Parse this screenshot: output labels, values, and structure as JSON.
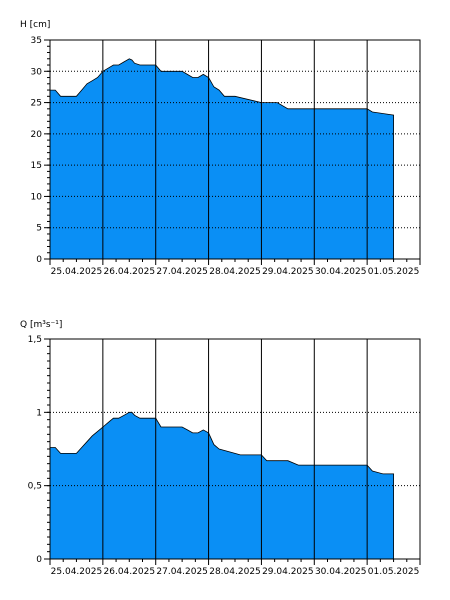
{
  "chart_data": [
    {
      "type": "area",
      "ylabel": "H [cm]",
      "ylim": [
        0,
        35
      ],
      "ytick_labels": [
        "0",
        "5",
        "10",
        "15",
        "20",
        "25",
        "30",
        "35"
      ],
      "yticks": [
        0,
        5,
        10,
        15,
        20,
        25,
        30,
        35
      ],
      "xlim": [
        0,
        7
      ],
      "xtick_labels": [
        "25.04.2025",
        "26.04.2025",
        "27.04.2025",
        "28.04.2025",
        "29.04.2025",
        "30.04.2025",
        "01.05.2025"
      ],
      "grid": true,
      "fill_color": "#0a8ff5",
      "series": [
        {
          "x": [
            0,
            0.1,
            0.2,
            0.5,
            0.6,
            0.7,
            0.8,
            0.9,
            1.0,
            1.1,
            1.2,
            1.3,
            1.4,
            1.5,
            1.55,
            1.6,
            1.7,
            2.0,
            2.1,
            2.5,
            2.6,
            2.7,
            2.8,
            2.9,
            3.0,
            3.1,
            3.2,
            3.3,
            3.5,
            4.0,
            4.3,
            4.5,
            5.0,
            5.5,
            6.0,
            6.1,
            6.5
          ],
          "y": [
            27,
            27,
            26,
            26,
            27,
            28,
            28.5,
            29,
            30,
            30.5,
            31,
            31,
            31.5,
            32,
            31.8,
            31.3,
            31,
            31,
            30,
            30,
            29.5,
            29,
            29,
            29.5,
            29,
            27.5,
            27,
            26,
            26,
            25,
            25,
            24,
            24,
            24,
            24,
            23.5,
            23
          ]
        }
      ]
    },
    {
      "type": "area",
      "ylabel": "Q [m³s⁻¹]",
      "ylim": [
        0,
        1.5
      ],
      "ytick_labels": [
        "0",
        "0,5",
        "1",
        "1,5"
      ],
      "yticks": [
        0,
        0.5,
        1,
        1.5
      ],
      "xlim": [
        0,
        7
      ],
      "xtick_labels": [
        "25.04.2025",
        "26.04.2025",
        "27.04.2025",
        "28.04.2025",
        "29.04.2025",
        "30.04.2025",
        "01.05.2025"
      ],
      "grid": true,
      "fill_color": "#0a8ff5",
      "series": [
        {
          "x": [
            0,
            0.1,
            0.2,
            0.5,
            0.6,
            0.7,
            0.8,
            0.9,
            1.0,
            1.1,
            1.2,
            1.3,
            1.4,
            1.5,
            1.55,
            1.6,
            1.7,
            2.0,
            2.1,
            2.5,
            2.6,
            2.7,
            2.8,
            2.9,
            3.0,
            3.1,
            3.2,
            3.5,
            3.6,
            4.0,
            4.1,
            4.5,
            4.7,
            5.0,
            5.5,
            6.0,
            6.1,
            6.3,
            6.5
          ],
          "y": [
            0.76,
            0.76,
            0.72,
            0.72,
            0.76,
            0.8,
            0.84,
            0.87,
            0.9,
            0.93,
            0.96,
            0.96,
            0.98,
            1.0,
            1.0,
            0.98,
            0.96,
            0.96,
            0.9,
            0.9,
            0.88,
            0.86,
            0.86,
            0.88,
            0.86,
            0.78,
            0.75,
            0.72,
            0.71,
            0.71,
            0.67,
            0.67,
            0.64,
            0.64,
            0.64,
            0.64,
            0.6,
            0.58,
            0.58
          ]
        }
      ]
    }
  ]
}
